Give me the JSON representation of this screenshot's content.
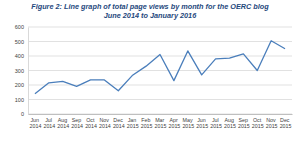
{
  "chart_data": {
    "type": "line",
    "title": [
      "Figure 2: Line graph of total page views by month for the OERC blog",
      "June 2014 to January 2016"
    ],
    "categories": [
      "Jun 2014",
      "Jul 2014",
      "Aug 2014",
      "Sep 2014",
      "Oct 2014",
      "Nov 2014",
      "Dec 2014",
      "Jan 2015",
      "Feb 2015",
      "Mar 2015",
      "Apr 2015",
      "May 2015",
      "Jun 2015",
      "Jul 2015",
      "Aug 2015",
      "Sep 2015",
      "Oct 2015",
      "Nov 2015",
      "Dec 2015"
    ],
    "values": [
      140,
      215,
      225,
      190,
      235,
      235,
      160,
      265,
      330,
      410,
      230,
      435,
      270,
      380,
      385,
      415,
      300,
      505,
      450
    ],
    "color": "#4a7ebb",
    "ylim": [
      0,
      600
    ],
    "yticks": [
      0,
      100,
      200,
      300,
      400,
      500,
      600
    ],
    "grid": true
  }
}
